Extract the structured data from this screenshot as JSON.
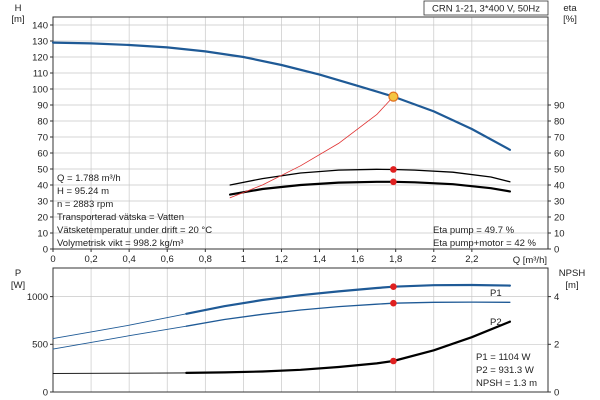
{
  "chart_data": [
    {
      "type": "line",
      "title": "CRN 1-21, 3*400 V, 50Hz",
      "xlabel": "Q [m³/h]",
      "x_ticks": [
        "0",
        "0,2",
        "0,4",
        "0,6",
        "0,8",
        "1",
        "1,2",
        "1,4",
        "1,6",
        "1,8",
        "2",
        "2,2"
      ],
      "xlim": [
        0,
        2.6
      ],
      "grid": true,
      "left_axis": {
        "label_line1": "H",
        "label_line2": "[m]",
        "ylim": [
          0,
          145
        ],
        "ticks": [
          "0",
          "10",
          "20",
          "30",
          "40",
          "50",
          "60",
          "70",
          "80",
          "90",
          "100",
          "110",
          "120",
          "130",
          "140"
        ]
      },
      "right_axis": {
        "label_line1": "eta",
        "label_line2": "[%]",
        "ylim": [
          0,
          145
        ],
        "ticks": [
          "0",
          "10",
          "20",
          "30",
          "40",
          "50",
          "60",
          "70",
          "80",
          "90"
        ]
      },
      "series": [
        {
          "axis": "left",
          "color": "#1f5a96",
          "width": 2.2,
          "x": [
            0,
            0.2,
            0.4,
            0.6,
            0.8,
            1.0,
            1.2,
            1.4,
            1.6,
            1.788,
            2.0,
            2.2,
            2.4
          ],
          "y": [
            129,
            128.5,
            127.5,
            126,
            123.5,
            120,
            115,
            109,
            102,
            95.24,
            86,
            75,
            62
          ]
        },
        {
          "axis": "right",
          "color": "#000000",
          "width": 1.3,
          "x": [
            0.93,
            1.1,
            1.3,
            1.5,
            1.7,
            1.788,
            1.9,
            2.1,
            2.3,
            2.4
          ],
          "y": [
            40,
            44,
            47.5,
            49.3,
            49.8,
            49.7,
            49.3,
            48,
            45,
            42
          ]
        },
        {
          "axis": "right",
          "color": "#000000",
          "width": 2.2,
          "x": [
            0.93,
            1.1,
            1.3,
            1.5,
            1.7,
            1.788,
            1.9,
            2.1,
            2.3,
            2.4
          ],
          "y": [
            34,
            37.5,
            40,
            41.5,
            42,
            42,
            41.7,
            40.5,
            38,
            36
          ]
        },
        {
          "axis": "left",
          "color": "#e03030",
          "width": 0.8,
          "x": [
            0.93,
            1.1,
            1.3,
            1.5,
            1.7,
            1.788
          ],
          "y": [
            32,
            40,
            52,
            66,
            84,
            95.24
          ]
        }
      ],
      "markers": [
        {
          "axis": "left",
          "x": 1.788,
          "y": 95.24,
          "color": "#f4c542",
          "ring": "#e07020"
        },
        {
          "axis": "right",
          "x": 1.788,
          "y": 49.7,
          "color": "#e02020"
        },
        {
          "axis": "right",
          "x": 1.788,
          "y": 42,
          "color": "#e02020"
        }
      ],
      "info_left": [
        "Q = 1.788 m³/h",
        "H = 95.24 m",
        "n = 2883 rpm",
        "Transporterad vätska = Vatten",
        "Vätsketemperatur under drift = 20 °C",
        "Volymetrisk vikt = 998.2 kg/m³"
      ],
      "info_right": [
        "Eta pump = 49.7 %",
        "Eta pump+motor = 42 %"
      ]
    },
    {
      "type": "line",
      "xlim": [
        0,
        2.6
      ],
      "grid": true,
      "left_axis": {
        "label_line1": "P",
        "label_line2": "[W]",
        "ylim": [
          0,
          1300
        ],
        "ticks": [
          "0",
          "500",
          "1000"
        ]
      },
      "right_axis": {
        "label_line1": "NPSH",
        "label_line2": "[m]",
        "ylim": [
          0,
          5.2
        ],
        "ticks": [
          "0",
          "2",
          "4"
        ]
      },
      "series": [
        {
          "name": "P1",
          "axis": "left",
          "color": "#1f5a96",
          "width": 2.2,
          "x": [
            0.7,
            0.9,
            1.1,
            1.3,
            1.5,
            1.7,
            1.788,
            2.0,
            2.2,
            2.4
          ],
          "y": [
            820,
            900,
            965,
            1015,
            1055,
            1090,
            1104,
            1120,
            1122,
            1115
          ]
        },
        {
          "axis": "left",
          "color": "#1f5a96",
          "width": 0.9,
          "x": [
            0,
            0.2,
            0.4,
            0.7
          ],
          "y": [
            560,
            630,
            700,
            820
          ]
        },
        {
          "name": "P2",
          "axis": "left",
          "color": "#1f5a96",
          "width": 1.3,
          "x": [
            0.7,
            0.9,
            1.1,
            1.3,
            1.5,
            1.7,
            1.788,
            2.0,
            2.2,
            2.4
          ],
          "y": [
            690,
            760,
            815,
            860,
            895,
            920,
            931.3,
            940,
            943,
            940
          ]
        },
        {
          "axis": "left",
          "color": "#1f5a96",
          "width": 0.9,
          "x": [
            0,
            0.2,
            0.4,
            0.7
          ],
          "y": [
            450,
            520,
            590,
            690
          ]
        },
        {
          "axis": "right",
          "color": "#000000",
          "width": 2.2,
          "x": [
            0.7,
            0.9,
            1.1,
            1.3,
            1.5,
            1.7,
            1.788,
            2.0,
            2.2,
            2.4
          ],
          "y": [
            0.8,
            0.82,
            0.86,
            0.93,
            1.05,
            1.2,
            1.3,
            1.75,
            2.3,
            2.95
          ]
        },
        {
          "axis": "right",
          "color": "#000000",
          "width": 0.9,
          "x": [
            0,
            0.35,
            0.7
          ],
          "y": [
            0.78,
            0.79,
            0.8
          ]
        }
      ],
      "markers": [
        {
          "axis": "left",
          "x": 1.788,
          "y": 1104,
          "color": "#e02020"
        },
        {
          "axis": "left",
          "x": 1.788,
          "y": 931.3,
          "color": "#e02020"
        },
        {
          "axis": "right",
          "x": 1.788,
          "y": 1.3,
          "color": "#e02020"
        }
      ],
      "info_right": [
        "P1 = 1104 W",
        "P2 = 931.3 W",
        "NPSH = 1.3 m"
      ]
    }
  ]
}
